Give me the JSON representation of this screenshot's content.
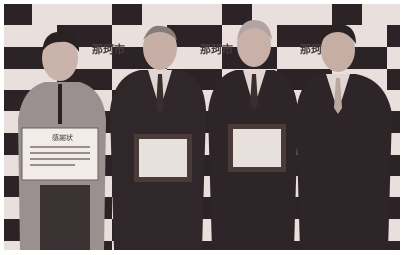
{
  "backdrop": {
    "labels": [
      "那珂市",
      "那珂市",
      "那珂市"
    ]
  },
  "certificate": {
    "title": "感謝状"
  }
}
